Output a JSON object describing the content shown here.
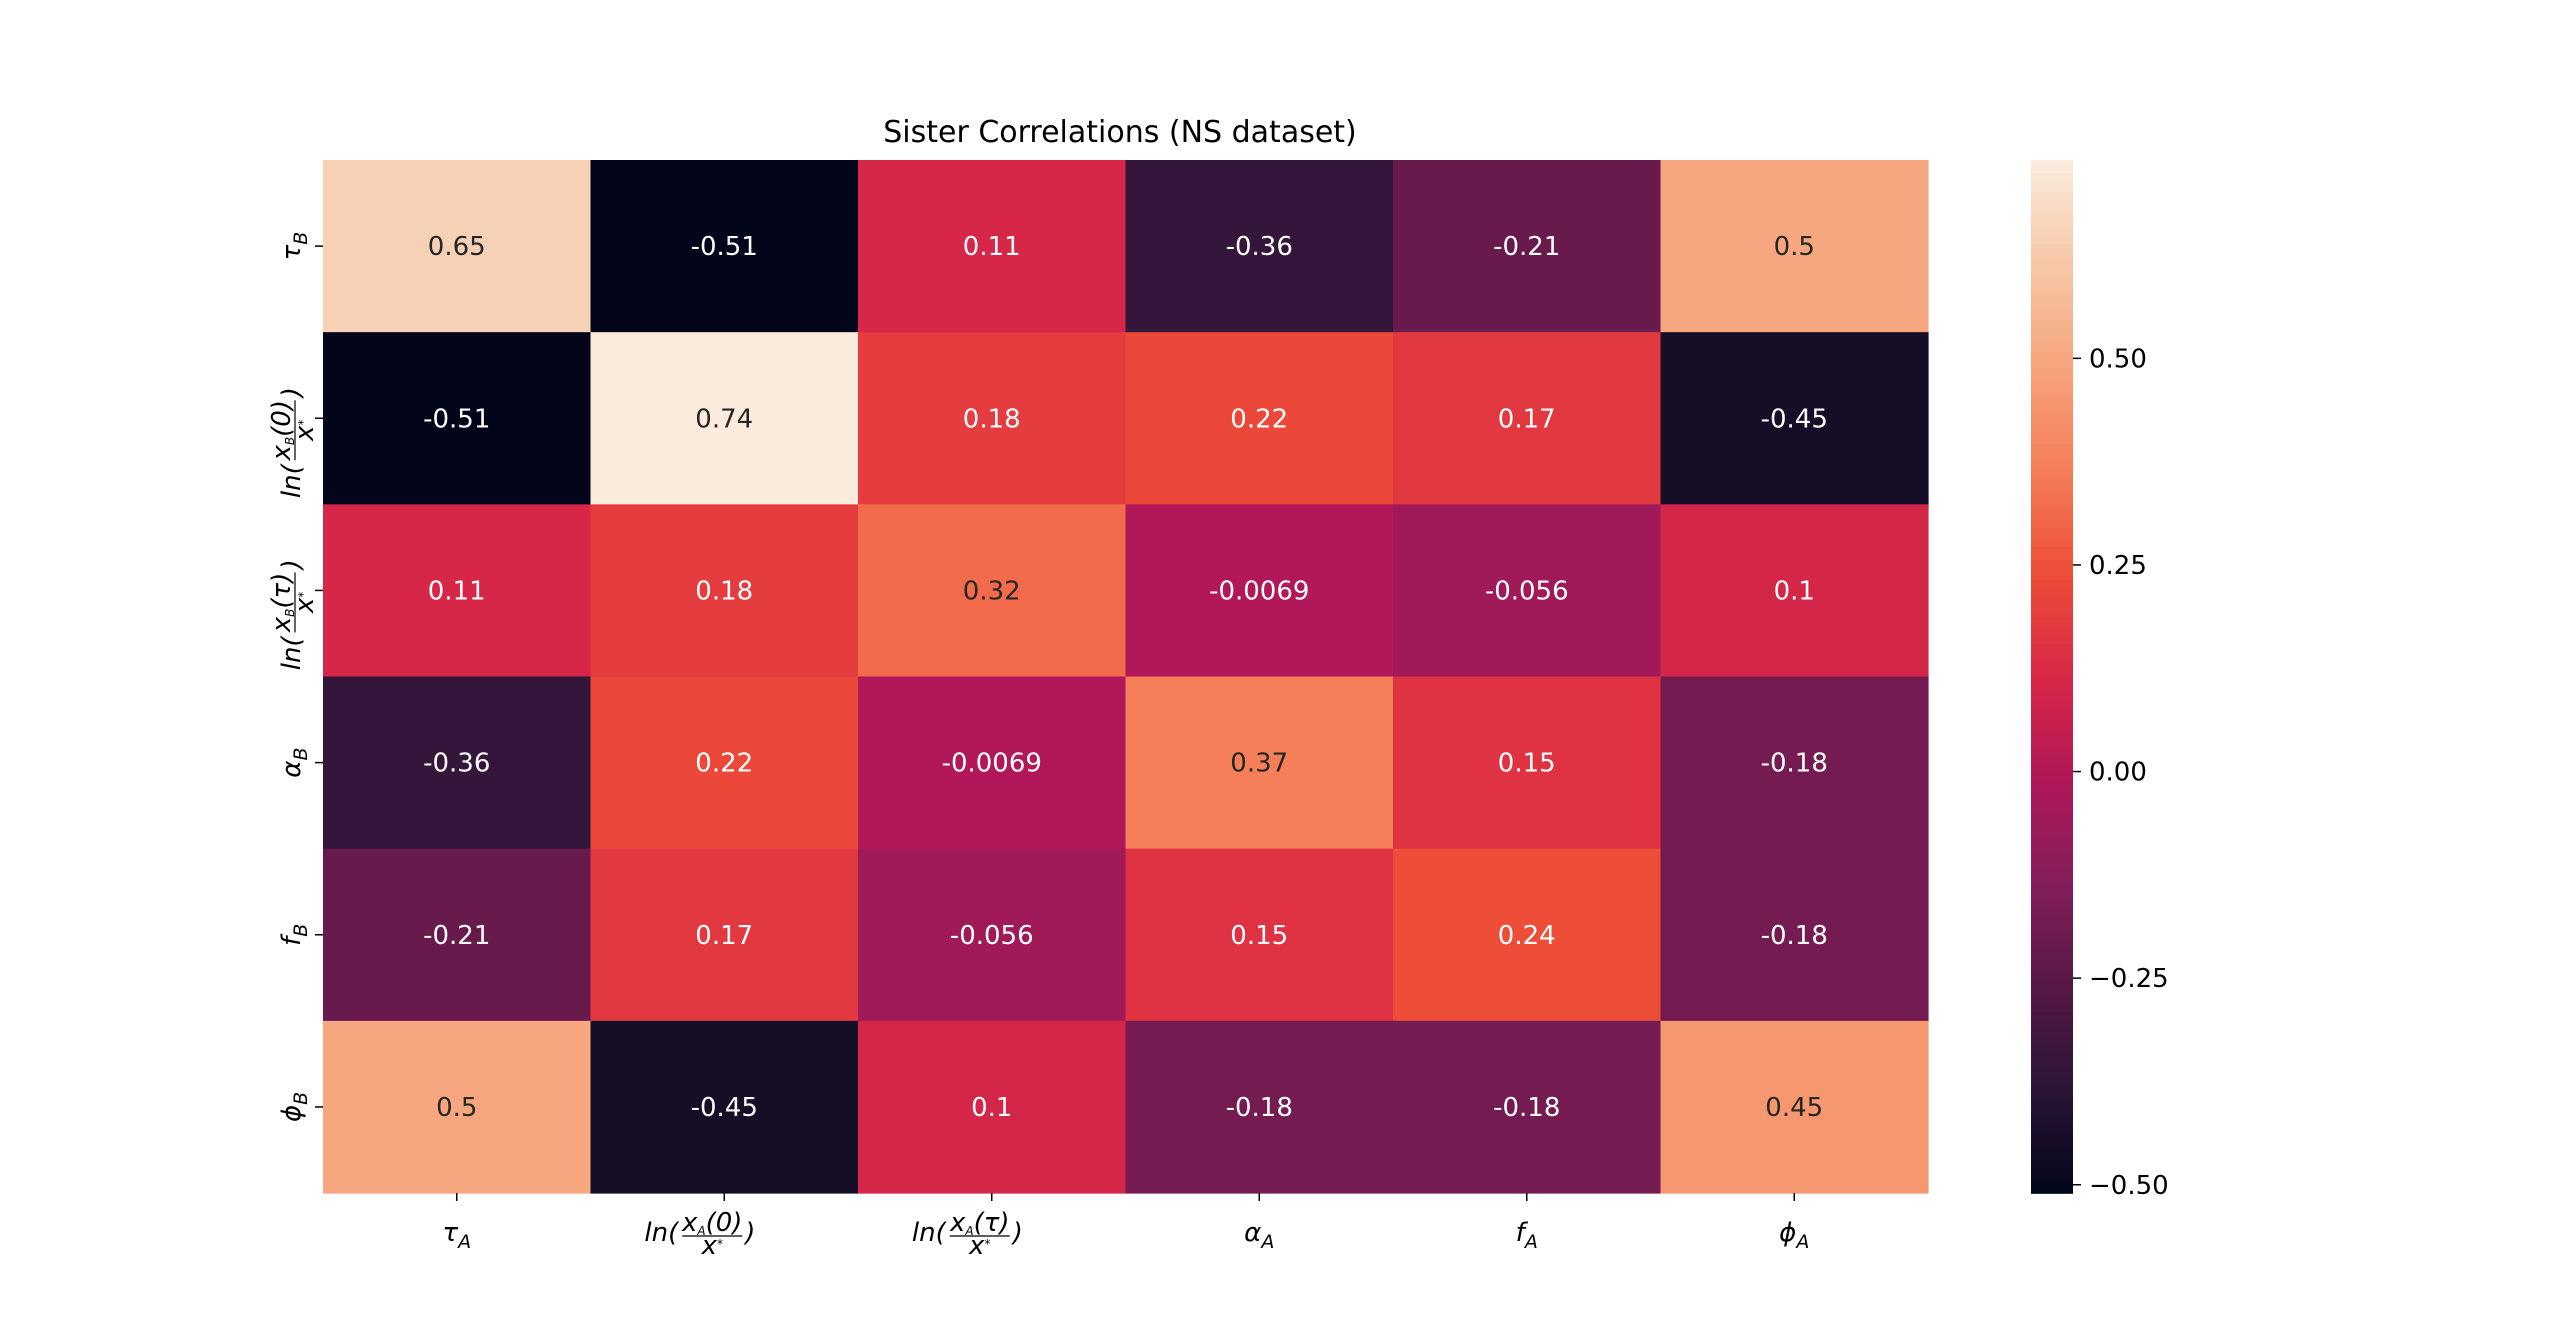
{
  "chart_data": {
    "type": "heatmap",
    "title": "Sister Correlations (NS dataset)",
    "x_labels": [
      {
        "base": "τ",
        "sub": "A",
        "type": "simple"
      },
      {
        "type": "ln",
        "num": "x",
        "numsub": "A",
        "arg": "0",
        "den": "x",
        "densup": "*"
      },
      {
        "type": "ln",
        "num": "x",
        "numsub": "A",
        "arg": "τ",
        "den": "x",
        "densup": "*"
      },
      {
        "base": "α",
        "sub": "A",
        "type": "simple"
      },
      {
        "base": "f",
        "sub": "A",
        "type": "simple"
      },
      {
        "base": "ϕ",
        "sub": "A",
        "type": "simple"
      }
    ],
    "y_labels": [
      {
        "base": "τ",
        "sub": "B",
        "type": "simple"
      },
      {
        "type": "ln",
        "num": "x",
        "numsub": "B",
        "arg": "0",
        "den": "x",
        "densup": "*"
      },
      {
        "type": "ln",
        "num": "x",
        "numsub": "B",
        "arg": "τ",
        "den": "x",
        "densup": "*"
      },
      {
        "base": "α",
        "sub": "B",
        "type": "simple"
      },
      {
        "base": "f",
        "sub": "B",
        "type": "simple"
      },
      {
        "base": "ϕ",
        "sub": "B",
        "type": "simple"
      }
    ],
    "values": [
      [
        0.65,
        -0.51,
        0.11,
        -0.36,
        -0.21,
        0.5
      ],
      [
        -0.51,
        0.74,
        0.18,
        0.22,
        0.17,
        -0.45
      ],
      [
        0.11,
        0.18,
        0.32,
        -0.0069,
        -0.056,
        0.1
      ],
      [
        -0.36,
        0.22,
        -0.0069,
        0.37,
        0.15,
        -0.18
      ],
      [
        -0.21,
        0.17,
        -0.056,
        0.15,
        0.24,
        -0.18
      ],
      [
        0.5,
        -0.45,
        0.1,
        -0.18,
        -0.18,
        0.45
      ]
    ],
    "annotations": [
      [
        "0.65",
        "-0.51",
        "0.11",
        "-0.36",
        "-0.21",
        "0.5"
      ],
      [
        "-0.51",
        "0.74",
        "0.18",
        "0.22",
        "0.17",
        "-0.45"
      ],
      [
        "0.11",
        "0.18",
        "0.32",
        "-0.0069",
        "-0.056",
        "0.1"
      ],
      [
        "-0.36",
        "0.22",
        "-0.0069",
        "0.37",
        "0.15",
        "-0.18"
      ],
      [
        "-0.21",
        "0.17",
        "-0.056",
        "0.15",
        "0.24",
        "-0.18"
      ],
      [
        "0.5",
        "-0.45",
        "0.1",
        "-0.18",
        "-0.18",
        "0.45"
      ]
    ],
    "colorbar": {
      "vmin": -0.51,
      "vmax": 0.74,
      "ticks": [
        -0.5,
        -0.25,
        0.0,
        0.25,
        0.5
      ],
      "tick_labels": [
        "−0.50",
        "−0.25",
        "0.00",
        "0.25",
        "0.50"
      ],
      "colormap": "rocket",
      "colormap_stops": [
        "#03051a",
        "#2a1636",
        "#571845",
        "#841e5a",
        "#b01759",
        "#d92847",
        "#ee4e38",
        "#f47d57",
        "#f6a47c",
        "#f6c7a6",
        "#faebdd"
      ]
    },
    "grid": false
  }
}
